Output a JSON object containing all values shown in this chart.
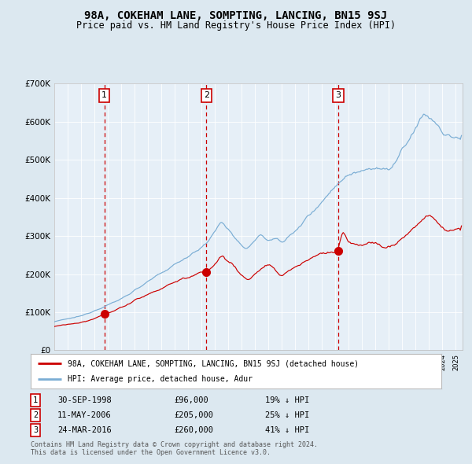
{
  "title": "98A, COKEHAM LANE, SOMPTING, LANCING, BN15 9SJ",
  "subtitle": "Price paid vs. HM Land Registry's House Price Index (HPI)",
  "title_fontsize": 10,
  "subtitle_fontsize": 8.5,
  "bg_color": "#dce8f0",
  "plot_bg_color": "#e6eff7",
  "red_line_color": "#cc0000",
  "blue_line_color": "#7aadd4",
  "sale_marker_color": "#cc0000",
  "dashed_line_color": "#cc0000",
  "ylim": [
    0,
    700000
  ],
  "yticks": [
    0,
    100000,
    200000,
    300000,
    400000,
    500000,
    600000,
    700000
  ],
  "ytick_labels": [
    "£0",
    "£100K",
    "£200K",
    "£300K",
    "£400K",
    "£500K",
    "£600K",
    "£700K"
  ],
  "sales": [
    {
      "label": "1",
      "date_str": "30-SEP-1998",
      "price": 96000,
      "pct": "19%",
      "x_year": 1998.75
    },
    {
      "label": "2",
      "date_str": "11-MAY-2006",
      "price": 205000,
      "pct": "25%",
      "x_year": 2006.36
    },
    {
      "label": "3",
      "date_str": "24-MAR-2016",
      "price": 260000,
      "pct": "41%",
      "x_year": 2016.22
    }
  ],
  "legend_red": "98A, COKEHAM LANE, SOMPTING, LANCING, BN15 9SJ (detached house)",
  "legend_blue": "HPI: Average price, detached house, Adur",
  "footer1": "Contains HM Land Registry data © Crown copyright and database right 2024.",
  "footer2": "This data is licensed under the Open Government Licence v3.0.",
  "xlim_start": 1995.0,
  "xlim_end": 2025.5
}
